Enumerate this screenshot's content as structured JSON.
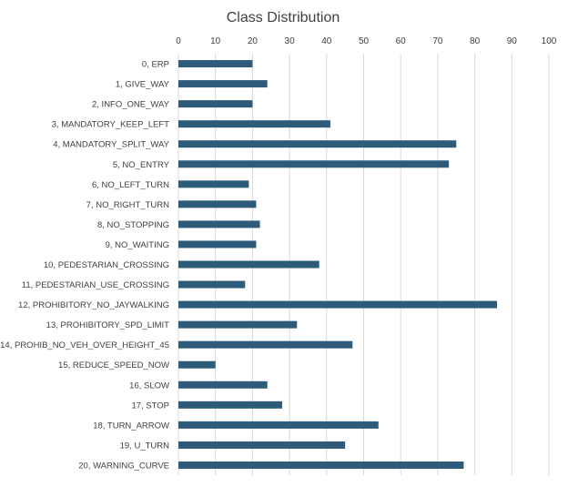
{
  "chart_data": {
    "type": "bar",
    "orientation": "horizontal",
    "title": "Class Distribution",
    "xlabel": "",
    "ylabel": "",
    "xlim": [
      0,
      100
    ],
    "x_ticks": [
      0,
      10,
      20,
      30,
      40,
      50,
      60,
      70,
      80,
      90,
      100
    ],
    "x_axis_position": "top",
    "grid": true,
    "legend": "none",
    "bar_color": "#2e5b7a",
    "categories": [
      "0, ERP",
      "1, GIVE_WAY",
      "2, INFO_ONE_WAY",
      "3, MANDATORY_KEEP_LEFT",
      "4, MANDATORY_SPLIT_WAY",
      "5, NO_ENTRY",
      "6, NO_LEFT_TURN",
      "7, NO_RIGHT_TURN",
      "8, NO_STOPPING",
      "9, NO_WAITING",
      "10, PEDESTARIAN_CROSSING",
      "11, PEDESTARIAN_USE_CROSSING",
      "12, PROHIBITORY_NO_JAYWALKING",
      "13, PROHIBITORY_SPD_LIMIT",
      "14, PROHIB_NO_VEH_OVER_HEIGHT_45",
      "15, REDUCE_SPEED_NOW",
      "16, SLOW",
      "17, STOP",
      "18, TURN_ARROW",
      "19, U_TURN",
      "20, WARNING_CURVE"
    ],
    "values": [
      20,
      24,
      20,
      41,
      75,
      73,
      19,
      21,
      22,
      21,
      38,
      18,
      86,
      32,
      47,
      10,
      24,
      28,
      54,
      45,
      77
    ]
  }
}
